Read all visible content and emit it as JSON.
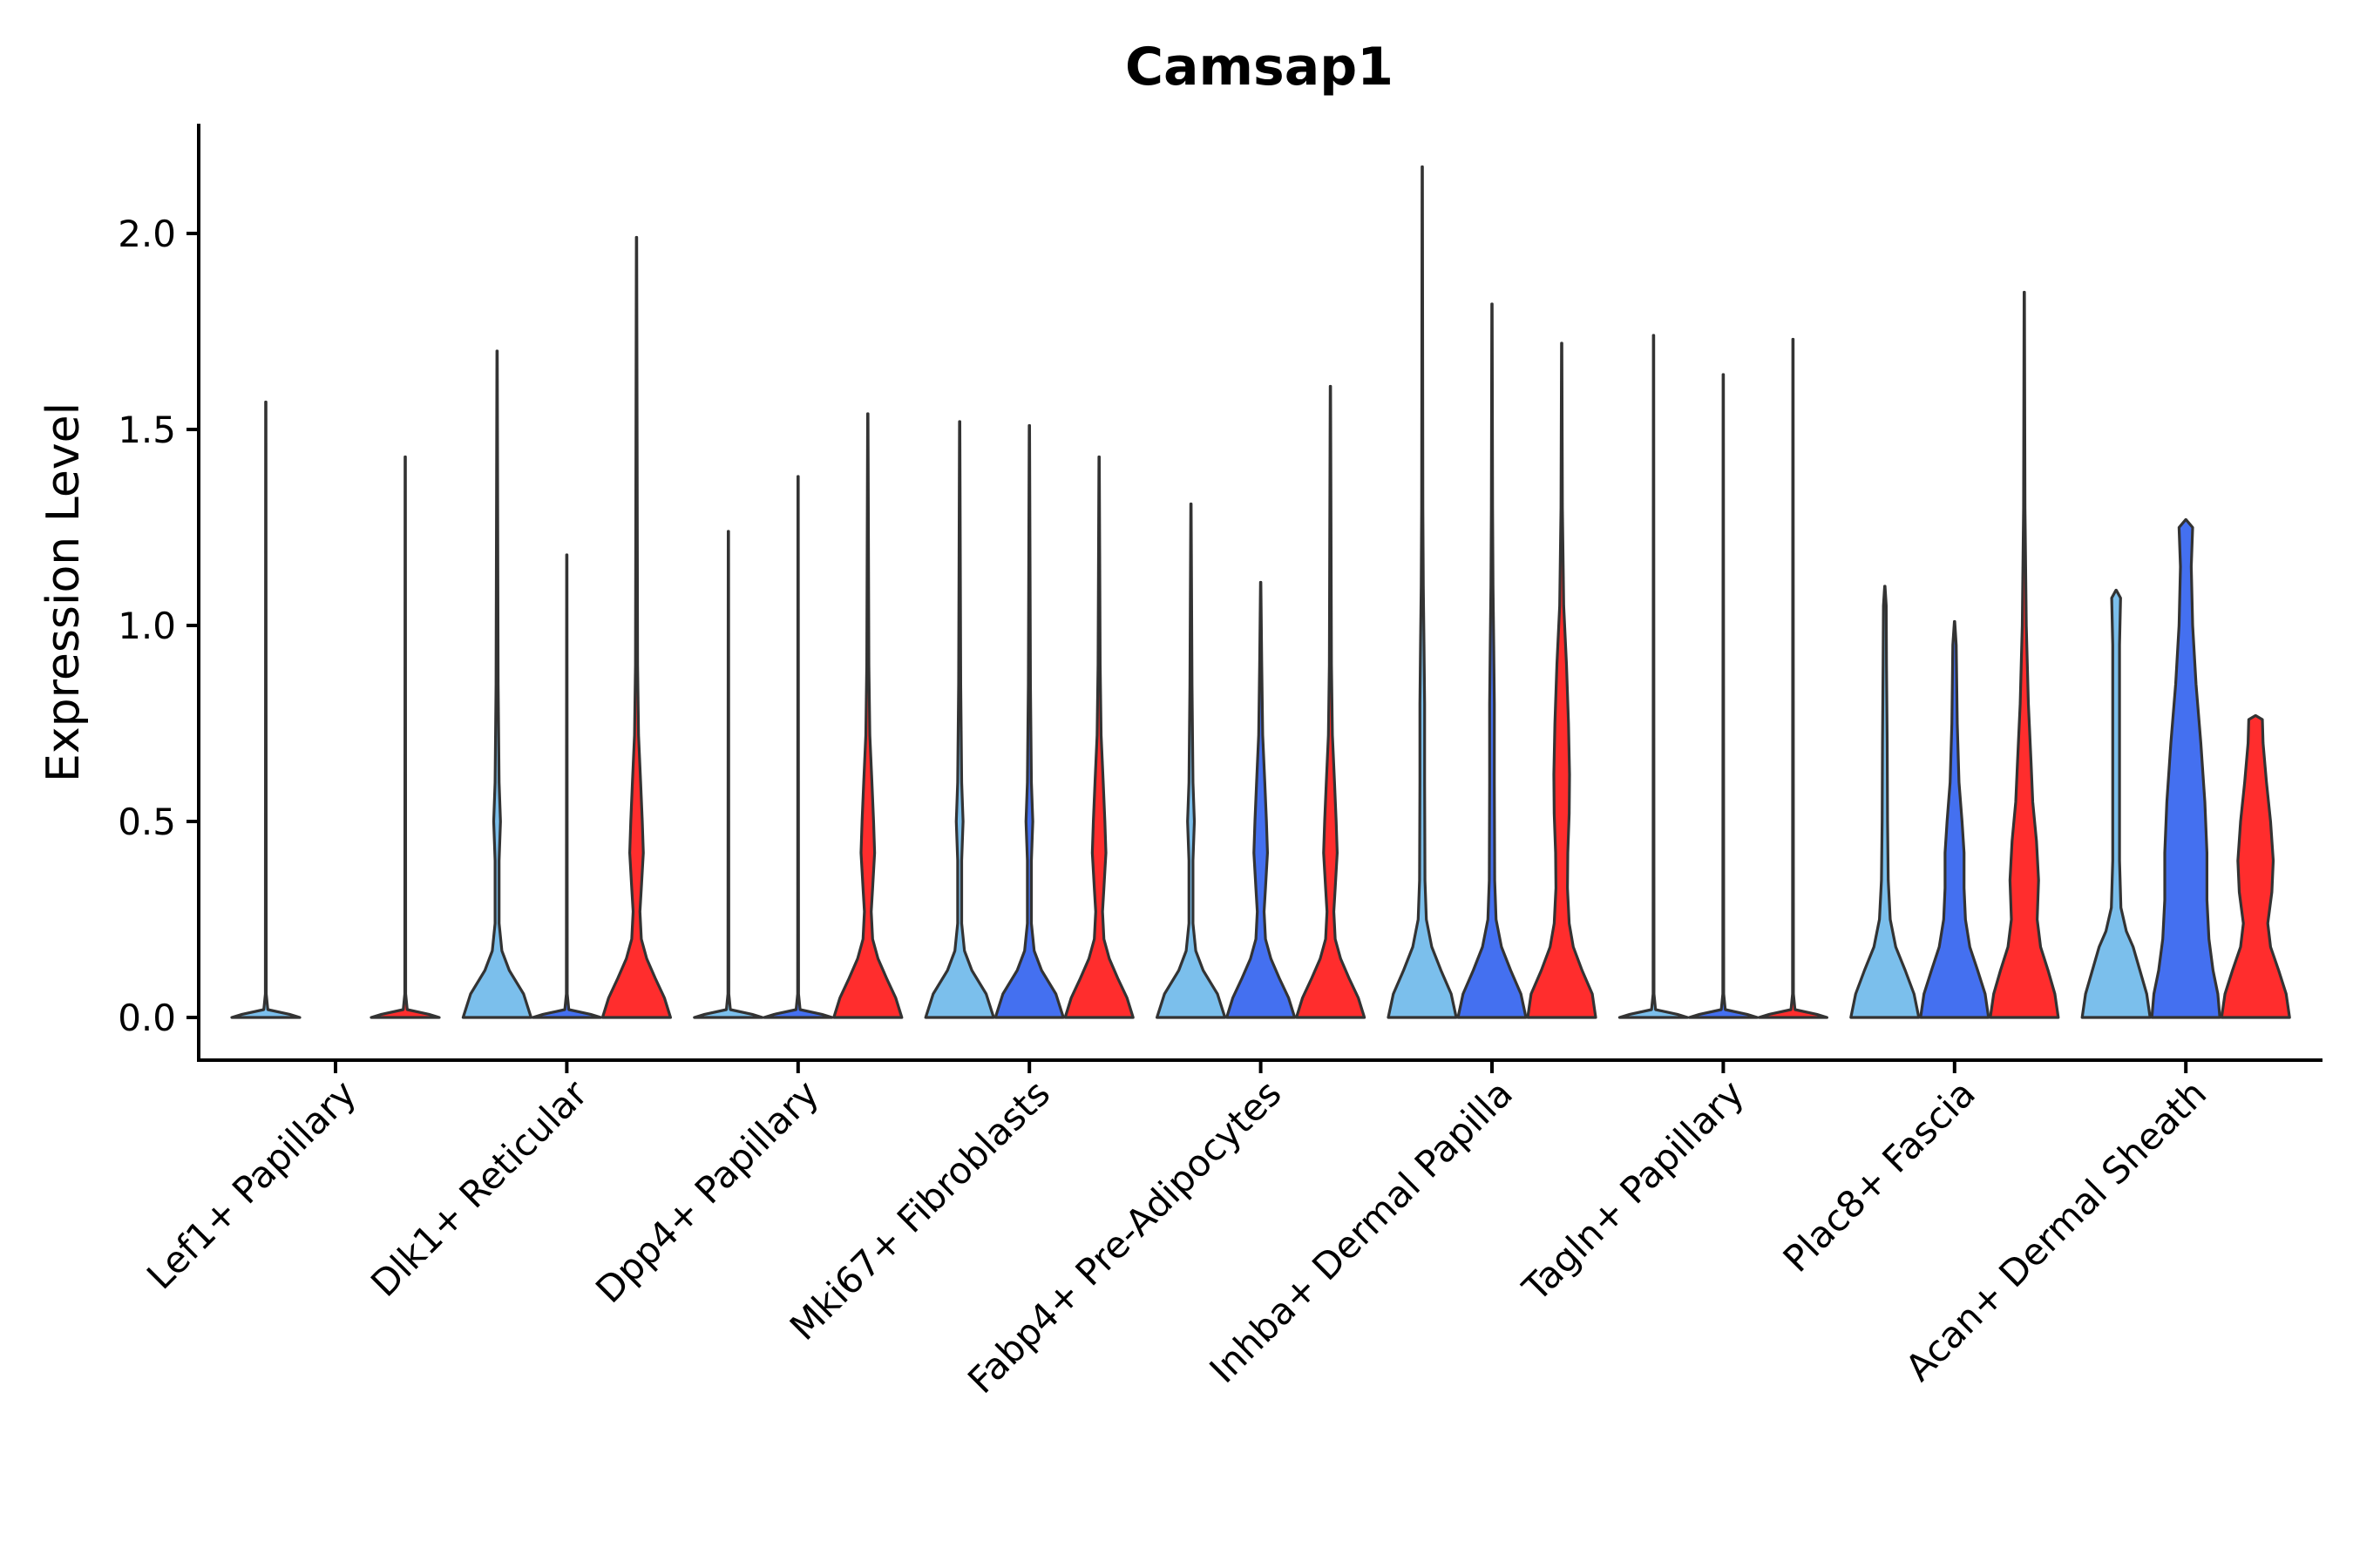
{
  "chart_data": {
    "type": "violin",
    "title": "Camsap1",
    "xlabel": "",
    "ylabel": "Expression Level",
    "ylim": [
      -0.11,
      2.28
    ],
    "yticks": [
      "0.0",
      "0.5",
      "1.0",
      "1.5",
      "2.0"
    ],
    "legend": "none",
    "grid": false,
    "colors": {
      "light": "#7BBFEC",
      "blue": "#4470F0",
      "red": "#FF2D2D",
      "outline": "#333333"
    },
    "categories": [
      "Lef1+ Papillary",
      "Dlk1+ Reticular",
      "Dpp4+ Papillary",
      "Mki67+ Fibroblasts",
      "Fabp4+ Pre-Adipocytes",
      "Inhba+ Dermal Papilla",
      "Tagln+ Papillary",
      "Plac8+ Fascia",
      "Acan+ Dermal Sheath"
    ],
    "series": [
      {
        "name": "light blue group",
        "color": "#7BBFEC",
        "max_values": [
          1.57,
          1.7,
          1.24,
          1.52,
          1.31,
          2.17,
          1.74,
          1.1,
          1.09
        ]
      },
      {
        "name": "blue group",
        "color": "#4470F0",
        "max_values": [
          0.0,
          1.18,
          1.38,
          1.51,
          1.11,
          1.82,
          1.64,
          1.01,
          1.27
        ]
      },
      {
        "name": "red group",
        "color": "#FF2D2D",
        "max_values": [
          1.43,
          1.99,
          1.54,
          1.43,
          1.61,
          1.72,
          1.73,
          1.85,
          0.77
        ]
      }
    ]
  }
}
